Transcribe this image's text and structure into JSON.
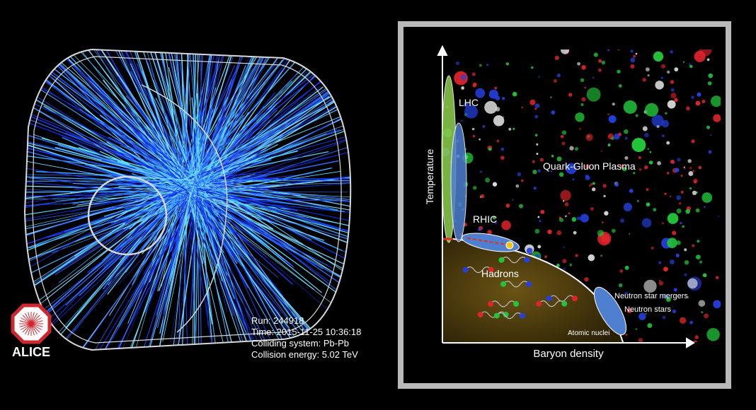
{
  "event_display": {
    "logo": "ALICE",
    "info": [
      "Run: 244918",
      "Time: 2015-11-25 10:36:18",
      "Colliding system: Pb-Pb",
      "Collision energy: 5.02 TeV"
    ]
  },
  "phase_diagram": {
    "y_axis": "Temperature",
    "x_axis": "Baryon density",
    "labels": {
      "lhc": "LHC",
      "rhic": "RHIC",
      "qgp": "Quark-Gluon Plasma",
      "hadrons": "Hadrons",
      "mergers": "Neutron star mergers",
      "neutron_stars": "Neutron stars",
      "nuclei": "Atomic nuclei"
    }
  }
}
